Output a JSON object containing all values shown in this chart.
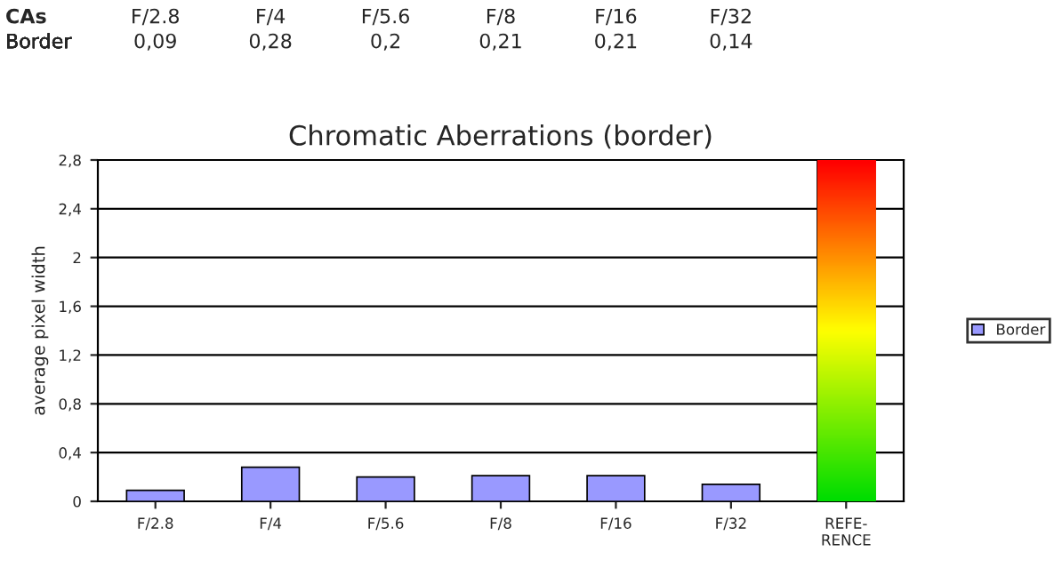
{
  "chart_data": {
    "type": "bar",
    "title": "Chromatic Aberrations (border)",
    "ylabel": "average pixel width",
    "categories": [
      "F/2.8",
      "F/4",
      "F/5.6",
      "F/8",
      "F/16",
      "F/32",
      "REFE-\nRENCE"
    ],
    "series": [
      {
        "name": "Border",
        "colors": [
          "#9999ff",
          "#9999ff",
          "#9999ff",
          "#9999ff",
          "#9999ff",
          "#9999ff",
          "#ffff00"
        ],
        "values": [
          0.09,
          0.28,
          0.2,
          0.21,
          0.21,
          0.14,
          2.8
        ],
        "value_labels": [
          "0,09",
          "0,28",
          "0,2",
          "0,21",
          "0,21",
          "0,14",
          null
        ]
      }
    ],
    "annotations": [
      "CAs"
    ],
    "ylim": [
      0,
      2.8
    ],
    "yticks": [
      {
        "value": 0,
        "label": "0"
      },
      {
        "value": 0.4,
        "label": "0,4"
      },
      {
        "value": 0.8,
        "label": "0,8"
      },
      {
        "value": 1.2,
        "label": "1,2"
      },
      {
        "value": 1.6,
        "label": "1,6"
      },
      {
        "value": 2.0,
        "label": "2"
      },
      {
        "value": 2.4,
        "label": "2,4"
      },
      {
        "value": 2.8,
        "label": "2,8"
      }
    ],
    "grid": "y",
    "legend": "right"
  }
}
